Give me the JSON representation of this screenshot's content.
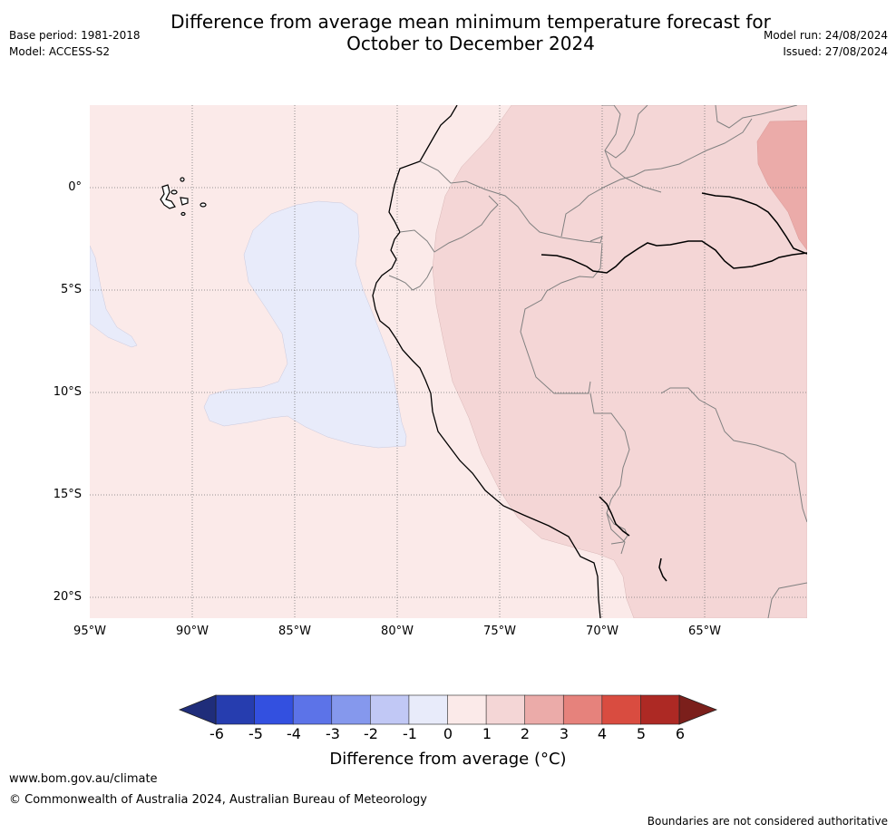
{
  "title_line1": "Difference from average mean minimum temperature forecast for",
  "title_line2": "October to December 2024",
  "base_period": "Base period: 1981-2018",
  "model": "Model: ACCESS-S2",
  "model_run": "Model run: 24/08/2024",
  "issued": "Issued: 27/08/2024",
  "map": {
    "longitude_labels": [
      "95°W",
      "90°W",
      "85°W",
      "80°W",
      "75°W",
      "70°W",
      "65°W"
    ],
    "latitude_labels": [
      "0°",
      "5°S",
      "10°S",
      "15°S",
      "20°S"
    ],
    "extent": {
      "lon": [
        -95,
        -60
      ],
      "lat": [
        -21,
        4
      ]
    },
    "regions": [
      {
        "name": "bin_0_to_1",
        "color": "#fbeae9"
      },
      {
        "name": "bin_-1_to_0",
        "color": "#e8ebfa"
      },
      {
        "name": "bin_1_to_2",
        "color": "#f4d6d6"
      },
      {
        "name": "bin_2_to_3",
        "color": "#ebaba9"
      }
    ]
  },
  "colorbar": {
    "ticks": [
      "-6",
      "-5",
      "-4",
      "-3",
      "-2",
      "-1",
      "0",
      "1",
      "2",
      "3",
      "4",
      "5",
      "6"
    ],
    "colors": [
      "#263daf",
      "#3350e0",
      "#5c73e8",
      "#8598ed",
      "#c1c8f5",
      "#e8ebfa",
      "#fbeae9",
      "#f4d6d6",
      "#ebaba9",
      "#e6827c",
      "#d94c40",
      "#ad2924"
    ],
    "under_color": "#1f2d7a",
    "over_color": "#7b1f1b",
    "label": "Difference from average (°C)"
  },
  "footer": {
    "url": "www.bom.gov.au/climate",
    "copyright": "© Commonwealth of Australia 2024, Australian Bureau of Meteorology",
    "disclaimer": "Boundaries are not considered authoritative"
  }
}
